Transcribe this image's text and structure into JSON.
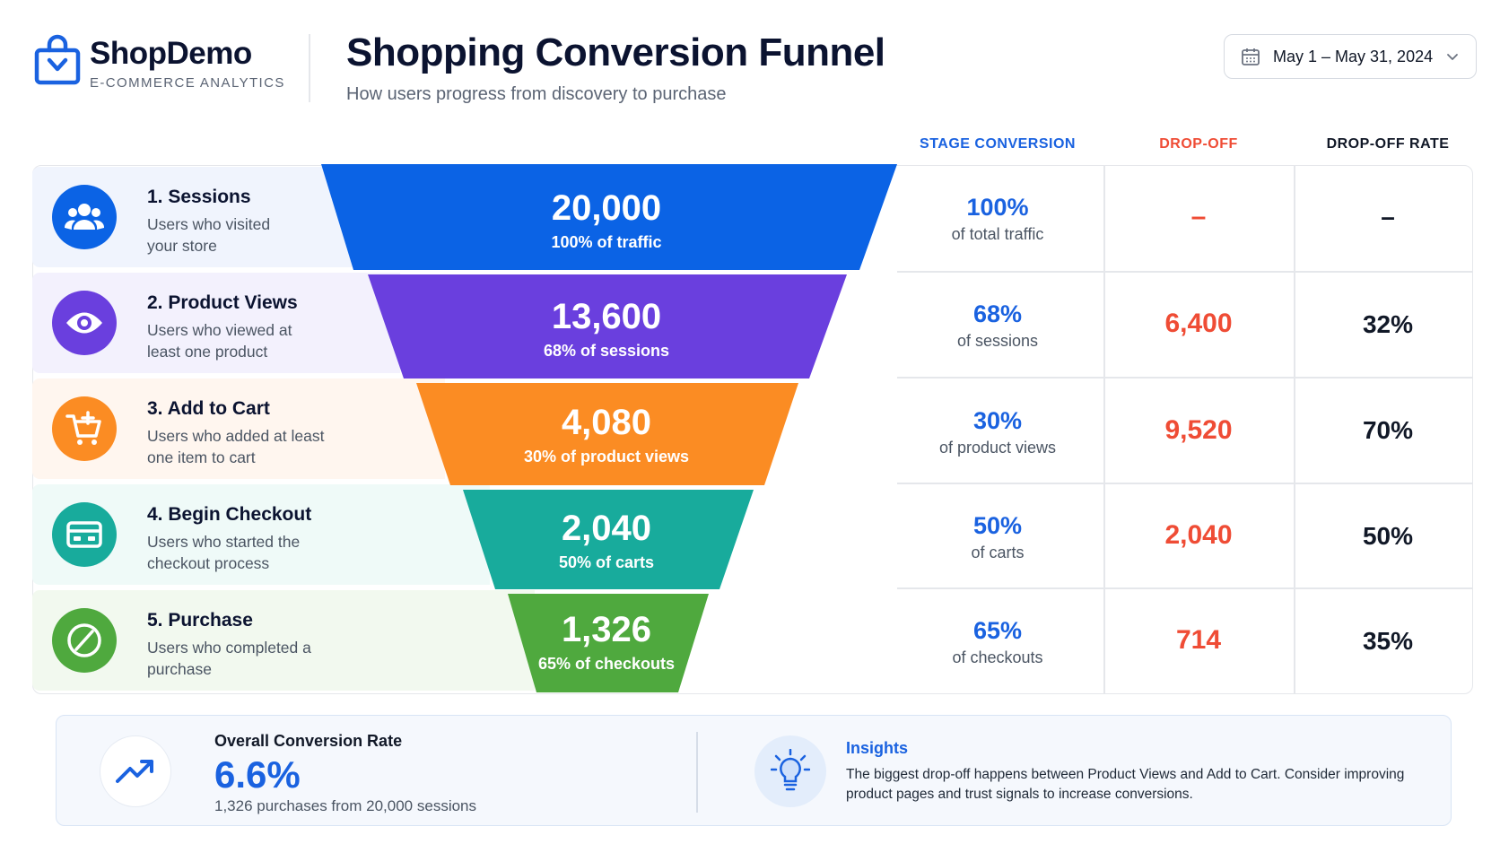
{
  "brand": {
    "name": "ShopDemo",
    "tagline": "E-COMMERCE ANALYTICS",
    "color": "#1a62e0"
  },
  "header": {
    "title": "Shopping Conversion Funnel",
    "subtitle": "How users progress from discovery to purchase",
    "date_range": "May 1 – May 31, 2024",
    "date_icon": "calendar-icon",
    "dropdown_icon": "chevron-down-icon"
  },
  "columns": {
    "conversion": "STAGE CONVERSION",
    "dropoff": "DROP-OFF",
    "dropoff_rate": "DROP-OFF RATE"
  },
  "stages": [
    {
      "title": "1. Sessions",
      "desc": "Users who visited your store",
      "icon": "users-icon",
      "color": "#0b63e5",
      "value": "20,000",
      "funnel_sub": "100% of traffic",
      "conv_pct": "100%",
      "conv_sub": "of total traffic",
      "dropoff": "–",
      "dropoff_rate": "–"
    },
    {
      "title": "2. Product Views",
      "desc": "Users who viewed at least one product",
      "icon": "eye-icon",
      "color": "#6a3fde",
      "value": "13,600",
      "funnel_sub": "68% of sessions",
      "conv_pct": "68%",
      "conv_sub": "of sessions",
      "dropoff": "6,400",
      "dropoff_rate": "32%"
    },
    {
      "title": "3. Add to Cart",
      "desc": "Users who added at least one item to cart",
      "icon": "cart-plus-icon",
      "color": "#fb8c23",
      "value": "4,080",
      "funnel_sub": "30% of product views",
      "conv_pct": "30%",
      "conv_sub": "of product views",
      "dropoff": "9,520",
      "dropoff_rate": "70%"
    },
    {
      "title": "4. Begin Checkout",
      "desc": "Users who started the checkout process",
      "icon": "credit-card-icon",
      "color": "#18ab9c",
      "value": "2,040",
      "funnel_sub": "50% of carts",
      "conv_pct": "50%",
      "conv_sub": "of carts",
      "dropoff": "2,040",
      "dropoff_rate": "50%"
    },
    {
      "title": "5. Purchase",
      "desc": "Users who completed a purchase",
      "icon": "check-circle-icon",
      "color": "#4fa93e",
      "value": "1,326",
      "funnel_sub": "65% of checkouts",
      "conv_pct": "65%",
      "conv_sub": "of checkouts",
      "dropoff": "714",
      "dropoff_rate": "35%"
    }
  ],
  "overall": {
    "label": "Overall Conversion Rate",
    "value": "6.6%",
    "sub": "1,326 purchases from 20,000 sessions",
    "icon": "trend-up-icon"
  },
  "insights": {
    "title": "Insights",
    "text": "The biggest drop-off happens between Product Views and Add to Cart. Consider improving product pages and trust signals to increase conversions.",
    "icon": "lightbulb-icon"
  }
}
